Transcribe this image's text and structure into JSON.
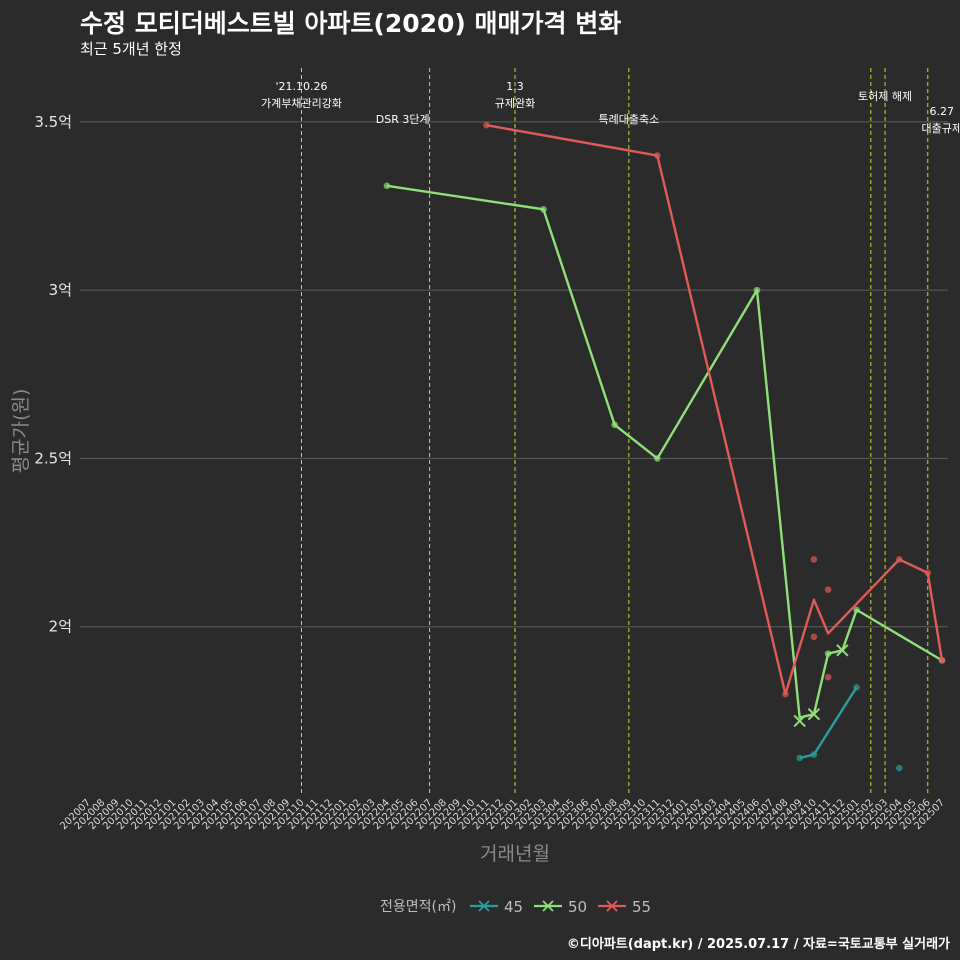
{
  "title": "수정 모티더베스트빌 아파트(2020) 매매가격 변화",
  "subtitle": "최근 5개년 한정",
  "footer": "©디아파트(dapt.kr) / 2025.07.17 / 자료=국토교통부 실거래가",
  "chart_data": {
    "type": "line",
    "xlabel": "거래년월",
    "ylabel": "평균가(원)",
    "categories": [
      "202007",
      "202008",
      "202009",
      "202010",
      "202011",
      "202012",
      "202101",
      "202102",
      "202103",
      "202104",
      "202105",
      "202106",
      "202107",
      "202108",
      "202109",
      "202110",
      "202111",
      "202112",
      "202201",
      "202202",
      "202203",
      "202204",
      "202205",
      "202206",
      "202207",
      "202208",
      "202209",
      "202210",
      "202211",
      "202212",
      "202301",
      "202302",
      "202303",
      "202304",
      "202305",
      "202306",
      "202307",
      "202308",
      "202309",
      "202310",
      "202311",
      "202312",
      "202401",
      "202402",
      "202403",
      "202404",
      "202405",
      "202406",
      "202407",
      "202408",
      "202409",
      "202410",
      "202411",
      "202412",
      "202501",
      "202502",
      "202503",
      "202504",
      "202505",
      "202506",
      "202507"
    ],
    "yticks": [
      {
        "value": 2.0,
        "label": "2억"
      },
      {
        "value": 2.5,
        "label": "2.5억"
      },
      {
        "value": 3.0,
        "label": "3억"
      },
      {
        "value": 3.5,
        "label": "3.5억"
      }
    ],
    "ylim": [
      1.5,
      3.66
    ],
    "grid": true,
    "legend": {
      "title": "전용면적(㎡)",
      "position": "bottom"
    },
    "series": [
      {
        "name": "45",
        "color": "#2a9d9a",
        "line": [
          [
            "202409",
            1.61
          ],
          [
            "202410",
            1.62
          ],
          [
            "202501",
            1.82
          ]
        ],
        "points": [
          [
            "202409",
            1.61
          ],
          [
            "202410",
            1.62
          ],
          [
            "202501",
            1.82
          ],
          [
            "202504",
            1.58
          ]
        ],
        "cross_points": []
      },
      {
        "name": "50",
        "color": "#90e07a",
        "line": [
          [
            "202204",
            3.31
          ],
          [
            "202303",
            3.24
          ],
          [
            "202308",
            2.6
          ],
          [
            "202311",
            2.5
          ],
          [
            "202406",
            3.0
          ],
          [
            "202409",
            1.73
          ],
          [
            "202410",
            1.74
          ],
          [
            "202411",
            1.92
          ],
          [
            "202412",
            1.93
          ],
          [
            "202501",
            2.05
          ],
          [
            "202507",
            1.9
          ]
        ],
        "points": [
          [
            "202204",
            3.31
          ],
          [
            "202303",
            3.24
          ],
          [
            "202308",
            2.6
          ],
          [
            "202311",
            2.5
          ],
          [
            "202406",
            3.0
          ],
          [
            "202411",
            1.92
          ],
          [
            "202501",
            2.05
          ],
          [
            "202507",
            1.9
          ]
        ],
        "cross_points": [
          [
            "202409",
            1.72
          ],
          [
            "202410",
            1.74
          ],
          [
            "202412",
            1.93
          ]
        ]
      },
      {
        "name": "55",
        "color": "#e05a5a",
        "line": [
          [
            "202211",
            3.49
          ],
          [
            "202311",
            3.4
          ],
          [
            "202408",
            1.8
          ],
          [
            "202410",
            2.08
          ],
          [
            "202411",
            1.98
          ],
          [
            "202504",
            2.2
          ],
          [
            "202506",
            2.16
          ],
          [
            "202507",
            1.9
          ]
        ],
        "points": [
          [
            "202211",
            3.49
          ],
          [
            "202311",
            3.4
          ],
          [
            "202408",
            1.8
          ],
          [
            "202410",
            2.2
          ],
          [
            "202410",
            1.97
          ],
          [
            "202411",
            2.11
          ],
          [
            "202411",
            1.85
          ],
          [
            "202504",
            2.2
          ],
          [
            "202506",
            2.16
          ],
          [
            "202507",
            1.9
          ]
        ],
        "cross_points": []
      }
    ],
    "events": [
      {
        "x": "202110",
        "lines": [
          "'21.10.26",
          "가계부채관리강화"
        ],
        "level": 0
      },
      {
        "x": "202207",
        "lines": [
          "DSR 3단계"
        ],
        "level": 2
      },
      {
        "x": "202301",
        "lines": [
          "1.3",
          "규제완화"
        ],
        "level": 0
      },
      {
        "x": "202309",
        "lines": [
          "특례대출축소"
        ],
        "level": 2
      },
      {
        "x": "202502",
        "lines": [],
        "level": 0
      },
      {
        "x": "202503",
        "lines": [
          "토허제 해제"
        ],
        "level": 1
      },
      {
        "x": "202506",
        "lines": [
          "6.27",
          "대출규제"
        ],
        "level": 3
      }
    ]
  }
}
